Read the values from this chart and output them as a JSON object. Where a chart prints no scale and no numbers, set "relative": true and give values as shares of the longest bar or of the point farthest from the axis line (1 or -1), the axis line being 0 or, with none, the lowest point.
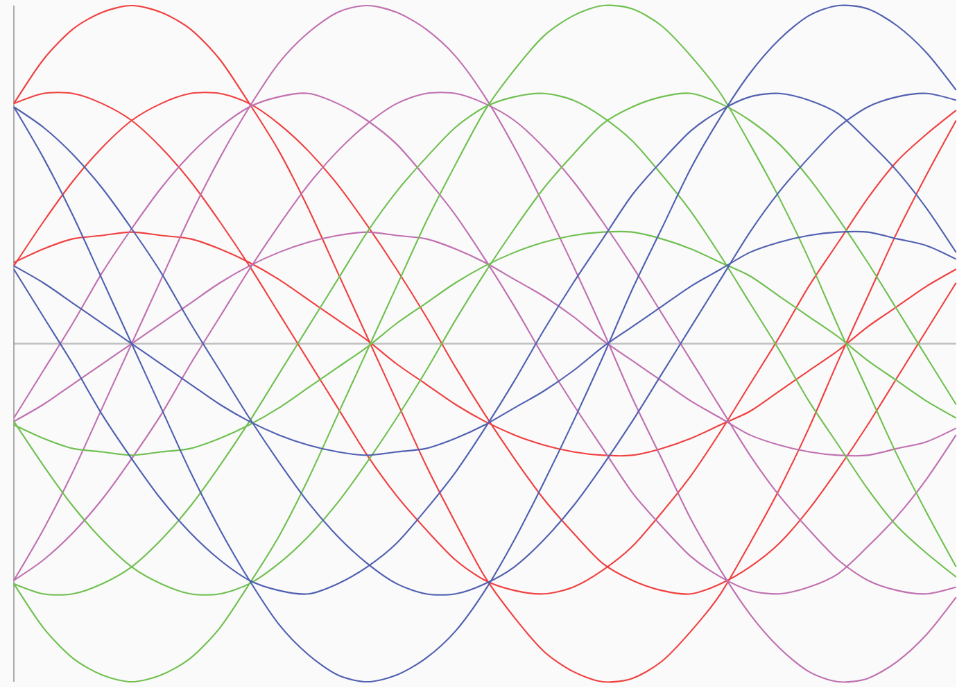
{
  "chart_data": {
    "type": "line",
    "relative": true,
    "categories": [
      null,
      null,
      null,
      null,
      null,
      null,
      null,
      null,
      null,
      null,
      null,
      null,
      null,
      null,
      null,
      null,
      null,
      null,
      null,
      null,
      null,
      null,
      null,
      null,
      null,
      null,
      null,
      null,
      null,
      null,
      null,
      null,
      null
    ],
    "series": [
      {
        "color": "#f04040",
        "values": [
          0.71,
          0.84,
          0.93,
          0.98,
          1.0,
          0.98,
          0.93,
          0.84,
          0.71,
          0.57,
          0.4,
          0.21,
          0.02,
          -0.17,
          -0.36,
          -0.53,
          -0.69,
          -0.81,
          -0.91,
          -0.97,
          -1.0,
          -0.99,
          -0.94,
          -0.85,
          -0.74,
          -0.59,
          -0.43,
          -0.25,
          -0.05,
          0.14,
          0.33,
          0.5,
          0.66
        ]
      },
      {
        "color": "#f04040",
        "values": [
          0.24,
          0.28,
          0.31,
          0.32,
          0.33,
          0.32,
          0.31,
          0.28,
          0.24,
          0.19,
          0.13,
          0.07,
          0.01,
          -0.06,
          -0.12,
          -0.18,
          -0.23,
          -0.27,
          -0.3,
          -0.32,
          -0.33,
          -0.33,
          -0.31,
          -0.28,
          -0.24,
          -0.2,
          -0.14,
          -0.08,
          -0.02,
          0.05,
          0.11,
          0.17,
          0.22
        ]
      },
      {
        "color": "#f04040",
        "values": [
          0.71,
          0.74,
          0.74,
          0.71,
          0.66,
          0.58,
          0.48,
          0.36,
          0.23,
          0.09,
          -0.05,
          -0.19,
          -0.33,
          -0.45,
          -0.55,
          -0.64,
          -0.7,
          -0.73,
          -0.74,
          -0.72,
          -0.67,
          -0.6,
          -0.5,
          -0.39,
          -0.26,
          -0.12,
          0.02,
          0.17,
          0.3,
          0.43,
          0.54,
          0.62,
          0.69
        ]
      },
      {
        "color": "#f04040",
        "values": [
          0.23,
          0.36,
          0.48,
          0.58,
          0.66,
          0.71,
          0.74,
          0.74,
          0.71,
          0.65,
          0.57,
          0.47,
          0.35,
          0.22,
          0.08,
          -0.07,
          -0.21,
          -0.34,
          -0.46,
          -0.56,
          -0.65,
          -0.7,
          -0.73,
          -0.74,
          -0.71,
          -0.66,
          -0.59,
          -0.49,
          -0.37,
          -0.24,
          -0.1,
          0.04,
          0.18
        ]
      },
      {
        "color": "#c070b0",
        "values": [
          -0.7,
          -0.55,
          -0.38,
          -0.19,
          0.0,
          0.19,
          0.38,
          0.55,
          0.7,
          0.83,
          0.92,
          0.98,
          1.0,
          0.98,
          0.93,
          0.85,
          0.73,
          0.58,
          0.41,
          0.23,
          0.04,
          -0.16,
          -0.34,
          -0.52,
          -0.67,
          -0.8,
          -0.9,
          -0.97,
          -1.0,
          -0.99,
          -0.94,
          -0.86,
          -0.75
        ]
      },
      {
        "color": "#c070b0",
        "values": [
          -0.23,
          -0.18,
          -0.12,
          -0.06,
          0.0,
          0.06,
          0.12,
          0.18,
          0.23,
          0.27,
          0.3,
          0.32,
          0.33,
          0.32,
          0.31,
          0.28,
          0.24,
          0.19,
          0.14,
          0.08,
          0.01,
          -0.05,
          -0.11,
          -0.17,
          -0.22,
          -0.27,
          -0.3,
          -0.32,
          -0.33,
          -0.33,
          -0.31,
          -0.29,
          -0.25
        ]
      },
      {
        "color": "#c070b0",
        "values": [
          -0.22,
          -0.08,
          0.06,
          0.21,
          0.34,
          0.46,
          0.56,
          0.64,
          0.7,
          0.73,
          0.74,
          0.71,
          0.66,
          0.59,
          0.49,
          0.38,
          0.25,
          0.11,
          -0.04,
          -0.18,
          -0.31,
          -0.44,
          -0.54,
          -0.63,
          -0.69,
          -0.73,
          -0.74,
          -0.72,
          -0.68,
          -0.6,
          -0.51,
          -0.4,
          -0.27
        ]
      },
      {
        "color": "#c070b0",
        "values": [
          -0.7,
          -0.64,
          -0.56,
          -0.46,
          -0.34,
          -0.21,
          -0.06,
          0.08,
          0.22,
          0.35,
          0.47,
          0.57,
          0.65,
          0.71,
          0.74,
          0.74,
          0.71,
          0.66,
          0.58,
          0.48,
          0.36,
          0.23,
          0.09,
          -0.05,
          -0.19,
          -0.33,
          -0.45,
          -0.55,
          -0.64,
          -0.7,
          -0.73,
          -0.74,
          -0.72
        ]
      },
      {
        "color": "#70c050",
        "values": [
          -0.71,
          -0.84,
          -0.93,
          -0.98,
          -1.0,
          -0.98,
          -0.93,
          -0.84,
          -0.71,
          -0.57,
          -0.4,
          -0.21,
          -0.02,
          0.17,
          0.36,
          0.53,
          0.69,
          0.81,
          0.91,
          0.97,
          1.0,
          0.99,
          0.94,
          0.85,
          0.74,
          0.59,
          0.43,
          0.25,
          0.05,
          -0.14,
          -0.33,
          -0.5,
          -0.66
        ]
      },
      {
        "color": "#70c050",
        "values": [
          -0.24,
          -0.28,
          -0.31,
          -0.32,
          -0.33,
          -0.32,
          -0.31,
          -0.28,
          -0.24,
          -0.19,
          -0.13,
          -0.07,
          -0.01,
          0.06,
          0.12,
          0.18,
          0.23,
          0.27,
          0.3,
          0.32,
          0.33,
          0.33,
          0.31,
          0.28,
          0.24,
          0.2,
          0.14,
          0.08,
          0.02,
          -0.05,
          -0.11,
          -0.17,
          -0.22
        ]
      },
      {
        "color": "#70c050",
        "values": [
          -0.71,
          -0.74,
          -0.74,
          -0.71,
          -0.66,
          -0.58,
          -0.48,
          -0.36,
          -0.23,
          -0.09,
          0.05,
          0.19,
          0.33,
          0.45,
          0.55,
          0.64,
          0.7,
          0.73,
          0.74,
          0.72,
          0.67,
          0.6,
          0.5,
          0.39,
          0.26,
          0.12,
          -0.02,
          -0.17,
          -0.3,
          -0.43,
          -0.54,
          -0.62,
          -0.69
        ]
      },
      {
        "color": "#70c050",
        "values": [
          -0.23,
          -0.36,
          -0.48,
          -0.58,
          -0.66,
          -0.71,
          -0.74,
          -0.74,
          -0.71,
          -0.65,
          -0.57,
          -0.47,
          -0.35,
          -0.22,
          -0.08,
          0.07,
          0.21,
          0.34,
          0.46,
          0.56,
          0.65,
          0.7,
          0.73,
          0.74,
          0.71,
          0.66,
          0.59,
          0.49,
          0.37,
          0.24,
          0.1,
          -0.04,
          -0.18
        ]
      },
      {
        "color": "#5060b0",
        "values": [
          0.7,
          0.55,
          0.38,
          0.19,
          0.0,
          -0.19,
          -0.38,
          -0.55,
          -0.7,
          -0.83,
          -0.92,
          -0.98,
          -1.0,
          -0.98,
          -0.93,
          -0.85,
          -0.73,
          -0.58,
          -0.41,
          -0.23,
          -0.04,
          0.16,
          0.34,
          0.52,
          0.67,
          0.8,
          0.9,
          0.97,
          1.0,
          0.99,
          0.94,
          0.86,
          0.75
        ]
      },
      {
        "color": "#5060b0",
        "values": [
          0.23,
          0.18,
          0.12,
          0.06,
          0.0,
          -0.06,
          -0.12,
          -0.18,
          -0.23,
          -0.27,
          -0.3,
          -0.32,
          -0.33,
          -0.32,
          -0.31,
          -0.28,
          -0.24,
          -0.19,
          -0.14,
          -0.08,
          -0.01,
          0.05,
          0.11,
          0.17,
          0.22,
          0.27,
          0.3,
          0.32,
          0.33,
          0.33,
          0.31,
          0.29,
          0.25
        ]
      },
      {
        "color": "#5060b0",
        "values": [
          0.22,
          0.08,
          -0.06,
          -0.21,
          -0.34,
          -0.46,
          -0.56,
          -0.64,
          -0.7,
          -0.73,
          -0.74,
          -0.71,
          -0.66,
          -0.59,
          -0.49,
          -0.38,
          -0.25,
          -0.11,
          0.04,
          0.18,
          0.31,
          0.44,
          0.54,
          0.63,
          0.69,
          0.73,
          0.74,
          0.72,
          0.68,
          0.6,
          0.51,
          0.4,
          0.27
        ]
      },
      {
        "color": "#5060b0",
        "values": [
          0.7,
          0.64,
          0.56,
          0.46,
          0.34,
          0.21,
          0.06,
          -0.08,
          -0.22,
          -0.35,
          -0.47,
          -0.57,
          -0.65,
          -0.71,
          -0.74,
          -0.74,
          -0.71,
          -0.66,
          -0.58,
          -0.48,
          -0.36,
          -0.23,
          -0.09,
          0.05,
          0.19,
          0.33,
          0.45,
          0.55,
          0.64,
          0.7,
          0.73,
          0.74,
          0.72
        ]
      }
    ]
  }
}
